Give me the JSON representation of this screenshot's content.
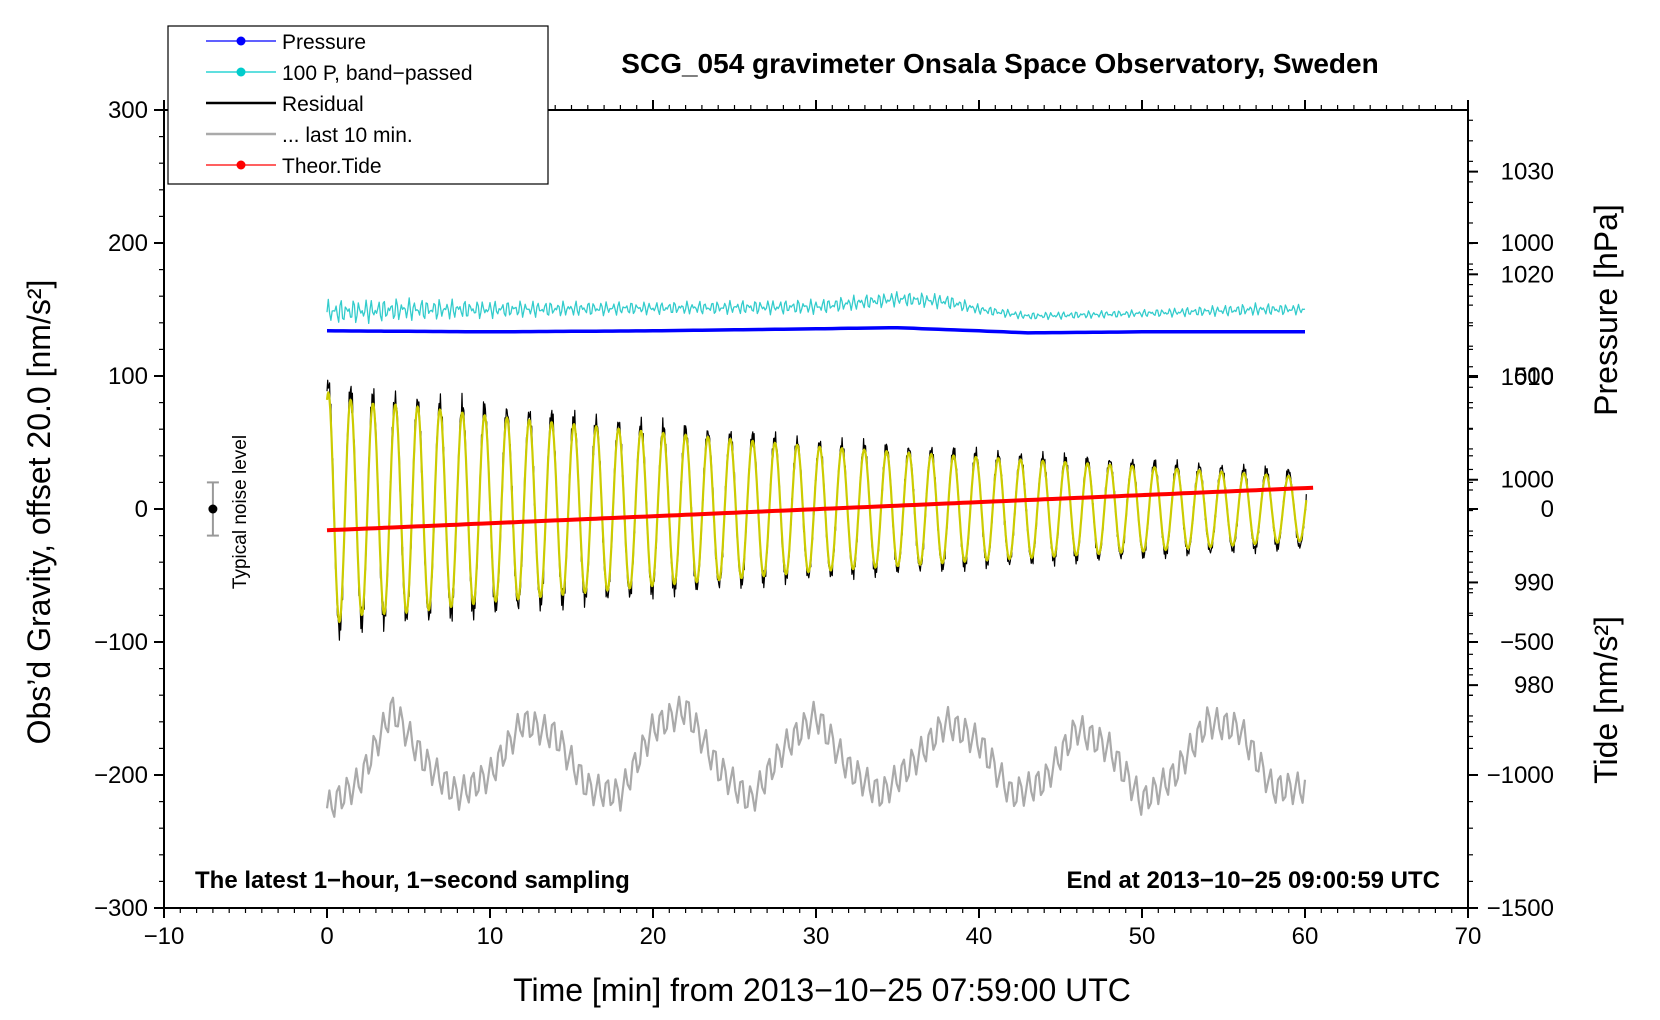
{
  "chart_data": {
    "type": "line",
    "title": "SCG_054 gravimeter Onsala Space Observatory, Sweden",
    "xlabel": "Time [min] from 2013−10−25 07:59:00 UTC",
    "ylabel_main": "Obs’d Gravity, offset 20.0 [nm/s²]",
    "ylabel_pressure": "Pressure [hPa]",
    "ylabel_tide": "Tide [nm/s²]",
    "xlim": [
      -10,
      70
    ],
    "ylim": [
      -300,
      300
    ],
    "pressure_lim": [
      958.3,
      1036
    ],
    "tide_lim": [
      -1500,
      1500
    ],
    "x_ticks": [
      -10,
      0,
      10,
      20,
      30,
      40,
      50,
      60,
      70
    ],
    "x_tick_labels": [
      "−10",
      "0",
      "10",
      "20",
      "30",
      "40",
      "50",
      "60",
      "70"
    ],
    "y_ticks": [
      -300,
      -200,
      -100,
      0,
      100,
      200,
      300
    ],
    "y_tick_labels": [
      "−300",
      "−200",
      "−100",
      "0",
      "100",
      "200",
      "300"
    ],
    "pressure_ticks": [
      980,
      990,
      1000,
      1010,
      1020,
      1030
    ],
    "pressure_tick_labels": [
      "980",
      "990",
      "1000",
      "1010",
      "1020",
      "1030"
    ],
    "tide_ticks": [
      -1500,
      -1000,
      -500,
      0,
      500,
      1000
    ],
    "tide_tick_labels": [
      "−1500",
      "−1000",
      "−500",
      "0",
      "500",
      "1000"
    ],
    "legend": {
      "position": "top-left",
      "entries": [
        {
          "label": "Pressure",
          "color": "#0000ff",
          "marker": true
        },
        {
          "label": "100 P, band−passed",
          "color": "#00cccc",
          "marker": true
        },
        {
          "label": "Residual",
          "color": "#000000",
          "marker": false
        },
        {
          "label": "... last 10 min.",
          "color": "#aaaaaa",
          "marker": false
        },
        {
          "label": "Theor.Tide",
          "color": "#ff0000",
          "marker": true
        }
      ]
    },
    "annotations": {
      "bottom_left": "The latest 1−hour, 1−second sampling",
      "bottom_right": "End at 2013−10−25 09:00:59 UTC",
      "noise_label": "Typical noise level",
      "noise_center": 0,
      "noise_halfwidth": 20,
      "noise_x": -7
    },
    "series": [
      {
        "name": "Pressure",
        "axis": "pressure",
        "color": "#0000ff",
        "x": [
          0,
          10,
          20,
          30,
          35,
          40,
          43,
          50,
          60
        ],
        "y": [
          1014.5,
          1014.4,
          1014.5,
          1014.7,
          1014.8,
          1014.5,
          1014.3,
          1014.4,
          1014.4
        ]
      },
      {
        "name": "100 P, band−passed",
        "axis": "main",
        "color": "#33cccc",
        "envelope_x": [
          0,
          5,
          10,
          20,
          30,
          35,
          38,
          40,
          43,
          50,
          57,
          60
        ],
        "center": [
          148,
          150,
          150,
          151,
          152,
          158,
          156,
          150,
          145,
          147,
          150,
          150
        ],
        "amplitude": [
          10,
          9,
          7,
          5,
          6,
          6,
          6,
          4,
          3,
          3,
          5,
          4
        ]
      },
      {
        "name": "Residual",
        "axis": "main",
        "color": "#000000",
        "period_min": 1.37,
        "envelope_x": [
          0,
          2,
          5,
          10,
          20,
          30,
          40,
          50,
          60
        ],
        "amplitude": [
          95,
          85,
          82,
          75,
          62,
          50,
          42,
          35,
          28
        ],
        "offset": 0
      },
      {
        "name": "Residual fit",
        "axis": "main",
        "color": "#cccc00",
        "period_min": 1.37,
        "envelope_x": [
          0,
          2,
          5,
          10,
          20,
          30,
          40,
          50,
          60
        ],
        "amplitude": [
          88,
          80,
          78,
          70,
          58,
          47,
          39,
          32,
          24
        ],
        "offset": 0
      },
      {
        "name": "... last 10 min.",
        "axis": "main",
        "color": "#aaaaaa",
        "x": [
          0,
          2,
          4,
          6,
          8,
          10,
          12,
          14,
          16,
          18,
          20,
          22,
          24,
          26,
          28,
          30,
          32,
          34,
          36,
          38,
          40,
          42,
          44,
          46,
          48,
          50,
          52,
          54,
          56,
          58,
          60
        ],
        "y": [
          -225,
          -205,
          -150,
          -190,
          -215,
          -200,
          -160,
          -170,
          -210,
          -215,
          -165,
          -150,
          -195,
          -220,
          -180,
          -155,
          -195,
          -215,
          -190,
          -160,
          -175,
          -215,
          -205,
          -165,
          -180,
          -220,
          -200,
          -160,
          -165,
          -210,
          -210
        ]
      },
      {
        "name": "Theor.Tide",
        "axis": "tide",
        "color": "#ff0000",
        "x": [
          0,
          60.5
        ],
        "y": [
          -80,
          80
        ]
      }
    ]
  }
}
